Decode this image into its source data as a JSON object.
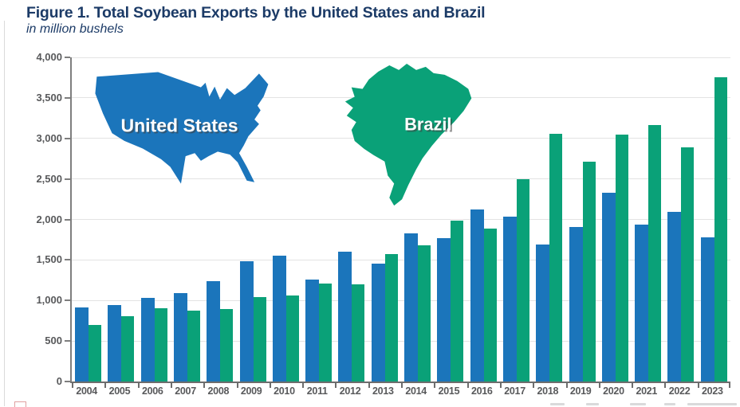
{
  "header": {
    "title": "Figure 1. Total Soybean Exports by the United States and Brazil",
    "subtitle": "in million bushels",
    "title_color": "#1C3B67"
  },
  "map_overlays": {
    "united_states_label": "United States",
    "brazil_label": "Brazil",
    "united_states_color": "#1B75BB",
    "brazil_color": "#0AA178",
    "label_text_color": "#FFFFFF"
  },
  "chart_data": {
    "type": "bar",
    "title": "Figure 1. Total Soybean Exports by the United States and Brazil",
    "subtitle": "in million bushels",
    "unit": "million bushels",
    "categories": [
      "2004",
      "2005",
      "2006",
      "2007",
      "2008",
      "2009",
      "2010",
      "2011",
      "2012",
      "2013",
      "2014",
      "2015",
      "2016",
      "2017",
      "2018",
      "2019",
      "2020",
      "2021",
      "2022",
      "2023"
    ],
    "series": [
      {
        "name": "United States",
        "color": "#1B75BB",
        "values": [
          915,
          940,
          1030,
          1090,
          1240,
          1480,
          1550,
          1255,
          1600,
          1450,
          1830,
          1765,
          2120,
          2030,
          1690,
          1910,
          2330,
          1940,
          2090,
          1780
        ]
      },
      {
        "name": "Brazil",
        "color": "#0AA178",
        "values": [
          700,
          810,
          900,
          870,
          890,
          1040,
          1060,
          1205,
          1195,
          1570,
          1680,
          1990,
          1890,
          2500,
          3060,
          2710,
          3050,
          3160,
          2890,
          3755
        ]
      }
    ],
    "ylim": [
      0,
      4000
    ],
    "ytick_step": 500,
    "yticks": [
      {
        "value": 0,
        "label": "0"
      },
      {
        "value": 500,
        "label": "500"
      },
      {
        "value": 1000,
        "label": "1,000"
      },
      {
        "value": 1500,
        "label": "1,500"
      },
      {
        "value": 2000,
        "label": "2,000"
      },
      {
        "value": 2500,
        "label": "2,500"
      },
      {
        "value": 3000,
        "label": "3,000"
      },
      {
        "value": 3500,
        "label": "3,500"
      },
      {
        "value": 4000,
        "label": "4,000"
      }
    ],
    "grid": "horizontal",
    "legend_position": "map silhouettes inside plot, top-left area"
  }
}
